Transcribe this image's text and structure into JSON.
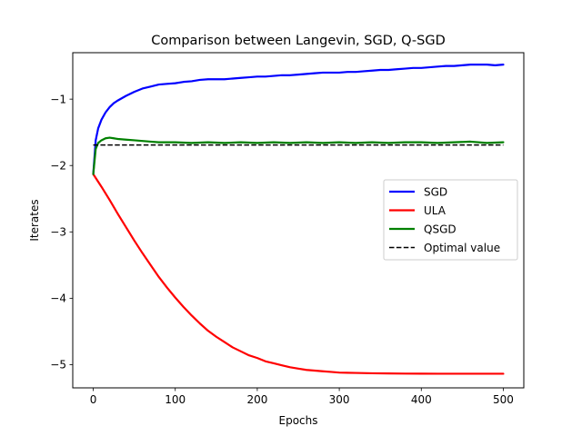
{
  "chart_data": {
    "type": "line",
    "title": "Comparison between Langevin, SGD, Q-SGD",
    "xlabel": "Epochs",
    "ylabel": "Iterates",
    "xlim": [
      -25,
      525
    ],
    "ylim": [
      -5.35,
      -0.3
    ],
    "xticks": [
      0,
      100,
      200,
      300,
      400,
      500
    ],
    "yticks": [
      -5,
      -4,
      -3,
      -2,
      -1
    ],
    "ytick_labels": [
      "−5",
      "−4",
      "−3",
      "−2",
      "−1"
    ],
    "grid": false,
    "legend_placement": "center-right",
    "series": [
      {
        "name": "SGD",
        "color": "#0000ff",
        "style": "solid",
        "x": [
          0,
          3,
          6,
          10,
          15,
          20,
          25,
          30,
          40,
          50,
          60,
          70,
          80,
          90,
          100,
          110,
          120,
          130,
          140,
          150,
          160,
          170,
          180,
          190,
          200,
          210,
          220,
          230,
          240,
          250,
          260,
          270,
          280,
          290,
          300,
          310,
          320,
          330,
          340,
          350,
          360,
          370,
          380,
          390,
          400,
          410,
          420,
          430,
          440,
          450,
          460,
          470,
          480,
          490,
          500
        ],
        "y": [
          -2.13,
          -1.62,
          -1.44,
          -1.31,
          -1.2,
          -1.12,
          -1.06,
          -1.02,
          -0.95,
          -0.89,
          -0.84,
          -0.81,
          -0.78,
          -0.77,
          -0.76,
          -0.74,
          -0.73,
          -0.71,
          -0.7,
          -0.7,
          -0.7,
          -0.69,
          -0.68,
          -0.67,
          -0.66,
          -0.66,
          -0.65,
          -0.64,
          -0.64,
          -0.63,
          -0.62,
          -0.61,
          -0.6,
          -0.6,
          -0.6,
          -0.59,
          -0.59,
          -0.58,
          -0.57,
          -0.56,
          -0.56,
          -0.55,
          -0.54,
          -0.53,
          -0.53,
          -0.52,
          -0.51,
          -0.5,
          -0.5,
          -0.49,
          -0.48,
          -0.48,
          -0.48,
          -0.49,
          -0.48
        ]
      },
      {
        "name": "ULA",
        "color": "#ff0000",
        "style": "solid",
        "x": [
          0,
          10,
          20,
          30,
          40,
          50,
          60,
          70,
          80,
          90,
          100,
          110,
          120,
          130,
          140,
          150,
          160,
          170,
          180,
          190,
          200,
          210,
          220,
          230,
          240,
          250,
          260,
          270,
          280,
          290,
          300,
          320,
          340,
          360,
          380,
          400,
          420,
          440,
          460,
          480,
          500
        ],
        "y": [
          -2.13,
          -2.32,
          -2.52,
          -2.73,
          -2.93,
          -3.13,
          -3.32,
          -3.5,
          -3.68,
          -3.84,
          -3.99,
          -4.13,
          -4.26,
          -4.38,
          -4.49,
          -4.58,
          -4.66,
          -4.74,
          -4.8,
          -4.86,
          -4.9,
          -4.95,
          -4.98,
          -5.01,
          -5.04,
          -5.06,
          -5.08,
          -5.09,
          -5.1,
          -5.11,
          -5.12,
          -5.125,
          -5.13,
          -5.133,
          -5.135,
          -5.136,
          -5.137,
          -5.137,
          -5.137,
          -5.137,
          -5.137
        ]
      },
      {
        "name": "QSGD",
        "color": "#008000",
        "style": "solid",
        "x": [
          0,
          3,
          6,
          10,
          15,
          20,
          25,
          30,
          40,
          50,
          60,
          70,
          80,
          90,
          100,
          120,
          140,
          160,
          180,
          200,
          220,
          240,
          260,
          280,
          300,
          320,
          340,
          360,
          380,
          400,
          420,
          440,
          460,
          480,
          500
        ],
        "y": [
          -2.13,
          -1.75,
          -1.66,
          -1.62,
          -1.59,
          -1.58,
          -1.59,
          -1.6,
          -1.61,
          -1.62,
          -1.63,
          -1.64,
          -1.65,
          -1.65,
          -1.65,
          -1.66,
          -1.65,
          -1.66,
          -1.65,
          -1.66,
          -1.65,
          -1.66,
          -1.65,
          -1.66,
          -1.65,
          -1.66,
          -1.65,
          -1.66,
          -1.65,
          -1.65,
          -1.66,
          -1.65,
          -1.64,
          -1.66,
          -1.65
        ]
      },
      {
        "name": "Optimal value",
        "color": "#000000",
        "style": "dashed",
        "x": [
          0,
          500
        ],
        "y": [
          -1.69,
          -1.69
        ]
      }
    ]
  }
}
